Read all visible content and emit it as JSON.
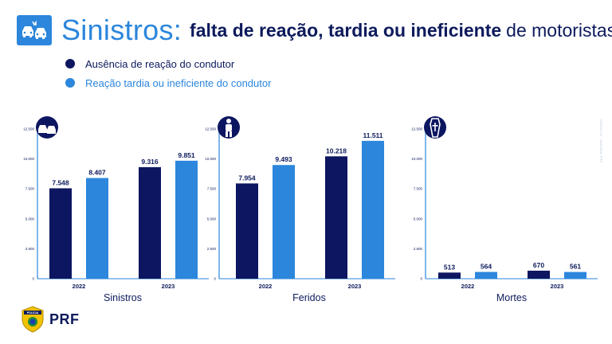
{
  "header": {
    "title_main": "Sinistros:",
    "title_bold": "falta de reação, tardia ou ineficiente",
    "title_rest": "de motoristas",
    "icon": "car-crash-icon"
  },
  "colors": {
    "dark": "#0d1660",
    "light": "#2b86dc",
    "axis": "#2b86dc",
    "text": "#0d1a5c"
  },
  "legend": [
    {
      "label": "Ausência de reação do condutor",
      "color": "#0d1660"
    },
    {
      "label": "Reação tardia ou ineficiente do condutor",
      "color": "#2b86dc"
    }
  ],
  "credit": "CRÉDITO: IMAGEM PRF",
  "brand": {
    "text": "PRF",
    "badge_text": "POLÍCIA"
  },
  "chart_data": [
    {
      "type": "bar",
      "title": "Sinistros",
      "icon": "car-crash-icon",
      "categories": [
        "2022",
        "2023"
      ],
      "series": [
        {
          "name": "Ausência de reação do condutor",
          "values": [
            7548,
            9316
          ],
          "labels": [
            "7.548",
            "9.316"
          ]
        },
        {
          "name": "Reação tardia ou ineficiente do condutor",
          "values": [
            8407,
            9851
          ],
          "labels": [
            "8.407",
            "9.851"
          ]
        }
      ],
      "yticks": [
        0,
        2500,
        5000,
        7500,
        10000,
        12500
      ],
      "ytick_labels": [
        "0",
        "2.500",
        "5.000",
        "7.500",
        "10.000",
        "12.500"
      ],
      "ylim": [
        0,
        12500
      ]
    },
    {
      "type": "bar",
      "title": "Feridos",
      "icon": "injured-person-icon",
      "categories": [
        "2022",
        "2023"
      ],
      "series": [
        {
          "name": "Ausência de reação do condutor",
          "values": [
            7954,
            10218
          ],
          "labels": [
            "7.954",
            "10.218"
          ]
        },
        {
          "name": "Reação tardia ou ineficiente do condutor",
          "values": [
            9493,
            11511
          ],
          "labels": [
            "9.493",
            "11.511"
          ]
        }
      ],
      "yticks": [
        0,
        2500,
        5000,
        7500,
        10000,
        12500
      ],
      "ytick_labels": [
        "0",
        "2.500",
        "5.000",
        "7.500",
        "10.000",
        "12.500"
      ],
      "ylim": [
        0,
        12500
      ]
    },
    {
      "type": "bar",
      "title": "Mortes",
      "icon": "coffin-cross-icon",
      "categories": [
        "2022",
        "2023"
      ],
      "series": [
        {
          "name": "Ausência de reação do condutor",
          "values": [
            513,
            670
          ],
          "labels": [
            "513",
            "670"
          ]
        },
        {
          "name": "Reação tardia ou ineficiente do condutor",
          "values": [
            564,
            561
          ],
          "labels": [
            "564",
            "561"
          ]
        }
      ],
      "yticks": [
        0,
        2500,
        5000,
        7500,
        10000,
        12500
      ],
      "ytick_labels": [
        "0",
        "2.500",
        "5.000",
        "7.500",
        "10.000",
        "12.500"
      ],
      "ylim": [
        0,
        12500
      ]
    }
  ]
}
